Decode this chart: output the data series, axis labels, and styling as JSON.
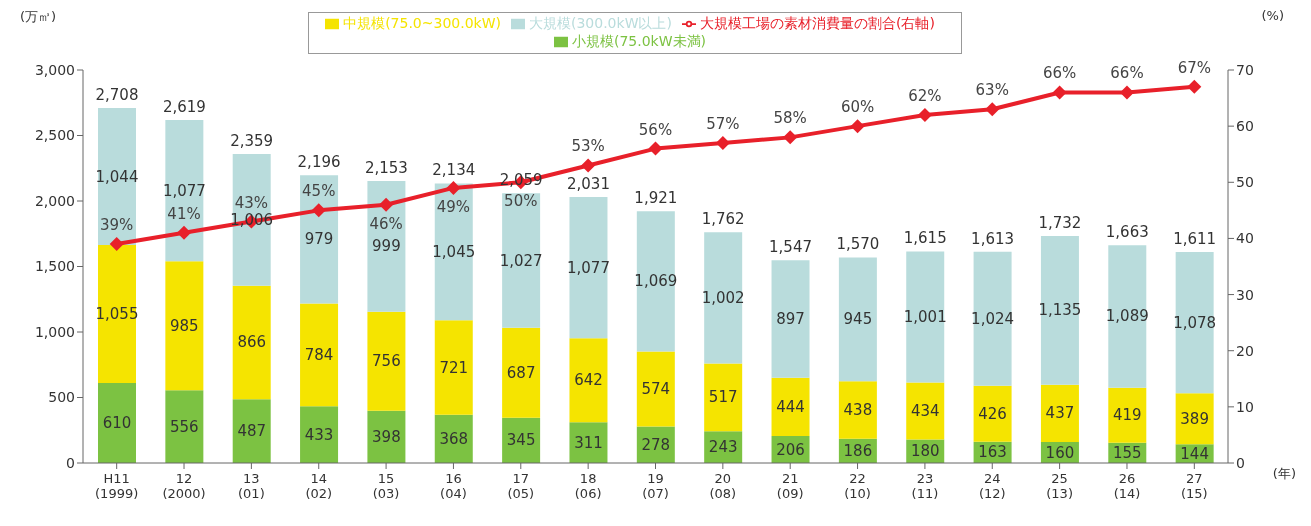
{
  "chart_data": {
    "type": "bar",
    "stacked": true,
    "xlabel": "(年)",
    "ylabel": "(万㎥)",
    "y2label": "(%)",
    "categories": [
      "H11\n(1999)",
      "12\n(2000)",
      "13\n(01)",
      "14\n(02)",
      "15\n(03)",
      "16\n(04)",
      "17\n(05)",
      "18\n(06)",
      "19\n(07)",
      "20\n(08)",
      "21\n(09)",
      "22\n(10)",
      "23\n(11)",
      "24\n(12)",
      "25\n(13)",
      "26\n(14)",
      "27\n(15)"
    ],
    "series": [
      {
        "name": "小規模(75.0kW未満)",
        "color": "#7cc242",
        "values": [
          610,
          556,
          487,
          433,
          398,
          368,
          345,
          311,
          278,
          243,
          206,
          186,
          180,
          163,
          160,
          155,
          144
        ],
        "value_labels": [
          "610",
          "556",
          "487",
          "433",
          "398",
          "368",
          "345",
          "311",
          "278",
          "243",
          "206",
          "186",
          "180",
          "163",
          "160",
          "155",
          "144"
        ]
      },
      {
        "name": "中規模(75.0~300.0kW)",
        "color": "#f5e400",
        "values": [
          1055,
          985,
          866,
          784,
          756,
          721,
          687,
          642,
          574,
          517,
          444,
          438,
          434,
          426,
          437,
          419,
          389
        ],
        "value_labels": [
          "1,055",
          "985",
          "866",
          "784",
          "756",
          "721",
          "687",
          "642",
          "574",
          "517",
          "444",
          "438",
          "434",
          "426",
          "437",
          "419",
          "389"
        ]
      },
      {
        "name": "大規模(300.0kW以上)",
        "color": "#b9dcdc",
        "values": [
          1044,
          1077,
          1006,
          979,
          999,
          1045,
          1027,
          1077,
          1069,
          1002,
          897,
          945,
          1001,
          1024,
          1135,
          1089,
          1078
        ],
        "value_labels": [
          "1,044",
          "1,077",
          "1,006",
          "979",
          "999",
          "1,045",
          "1,027",
          "1,077",
          "1,069",
          "1,002",
          "897",
          "945",
          "1,001",
          "1,024",
          "1,135",
          "1,089",
          "1,078"
        ]
      },
      {
        "name": "大規模工場の素材消費量の割合(右軸)",
        "type": "line",
        "axis": "y2",
        "color": "#e8202a",
        "marker": "diamond",
        "values": [
          39,
          41,
          43,
          45,
          46,
          49,
          50,
          53,
          56,
          57,
          58,
          60,
          62,
          63,
          66,
          66,
          67
        ],
        "value_labels": [
          "39%",
          "41%",
          "43%",
          "45%",
          "46%",
          "49%",
          "50%",
          "53%",
          "56%",
          "57%",
          "58%",
          "60%",
          "62%",
          "63%",
          "66%",
          "66%",
          "67%"
        ]
      }
    ],
    "totals": [
      "2,708",
      "2,619",
      "2,359",
      "2,196",
      "2,153",
      "2,134",
      "2,059",
      "2,031",
      "1,921",
      "1,762",
      "1,547",
      "1,570",
      "1,615",
      "1,613",
      "1,732",
      "1,663",
      "1,611"
    ],
    "ylim": [
      0,
      3000
    ],
    "yticks": [
      0,
      {
        "value": 500,
        "label": "500"
      },
      {
        "value": 1000,
        "label": "1,000"
      },
      {
        "value": 1500,
        "label": "1,500"
      },
      {
        "value": 2000,
        "label": "2,000"
      },
      {
        "value": 2500,
        "label": "2,500"
      },
      {
        "value": 3000,
        "label": "3,000"
      }
    ],
    "y2lim": [
      0,
      70
    ],
    "y2ticks": [
      0,
      10,
      20,
      30,
      40,
      50,
      60,
      70
    ],
    "legend": "top"
  }
}
